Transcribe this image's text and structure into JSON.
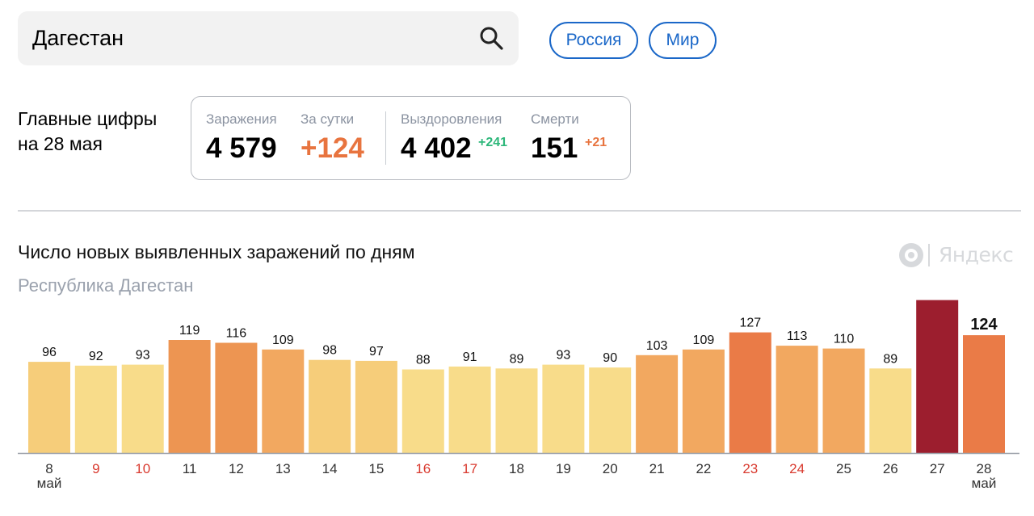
{
  "search": {
    "value": "Дагестан"
  },
  "region_buttons": [
    "Россия",
    "Мир"
  ],
  "summary": {
    "heading_line1": "Главные цифры",
    "heading_line2": "на 28 мая",
    "infections_label": "Заражения",
    "infections_value": "4 579",
    "daily_label": "За сутки",
    "daily_value": "+124",
    "recovered_label": "Выздоровления",
    "recovered_value": "4 402",
    "recovered_delta": "+241",
    "deaths_label": "Смерти",
    "deaths_value": "151",
    "deaths_delta": "+21"
  },
  "brand": "Яндекс",
  "colors": {
    "accent_blue": "#1a67c8",
    "orange": "#e8743f",
    "green": "#2db77a",
    "weekend_red": "#d93a2f",
    "axis_text": "#333333",
    "bar_levels": [
      "#f8dc8a",
      "#f6cd7a",
      "#f2a860",
      "#ed9552",
      "#ea7b47",
      "#9c1e2e"
    ]
  },
  "chart_data": {
    "type": "bar",
    "title": "Число новых выявленных заражений по дням",
    "subtitle": "Республика Дагестан",
    "categories": [
      "8",
      "9",
      "10",
      "11",
      "12",
      "13",
      "14",
      "15",
      "16",
      "17",
      "18",
      "19",
      "20",
      "21",
      "22",
      "23",
      "24",
      "25",
      "26",
      "27",
      "28"
    ],
    "month_label": "май",
    "weekend_days": [
      "9",
      "10",
      "16",
      "17",
      "23",
      "24"
    ],
    "values": [
      96,
      92,
      93,
      119,
      116,
      109,
      98,
      97,
      88,
      91,
      89,
      93,
      90,
      103,
      109,
      127,
      113,
      110,
      89,
      161,
      124
    ],
    "color_levels": [
      1,
      0,
      0,
      3,
      3,
      2,
      1,
      1,
      0,
      0,
      0,
      0,
      0,
      2,
      2,
      4,
      2,
      2,
      0,
      5,
      4
    ],
    "highlight_last": true,
    "ylim": [
      0,
      170
    ],
    "xlabel": "",
    "ylabel": ""
  }
}
